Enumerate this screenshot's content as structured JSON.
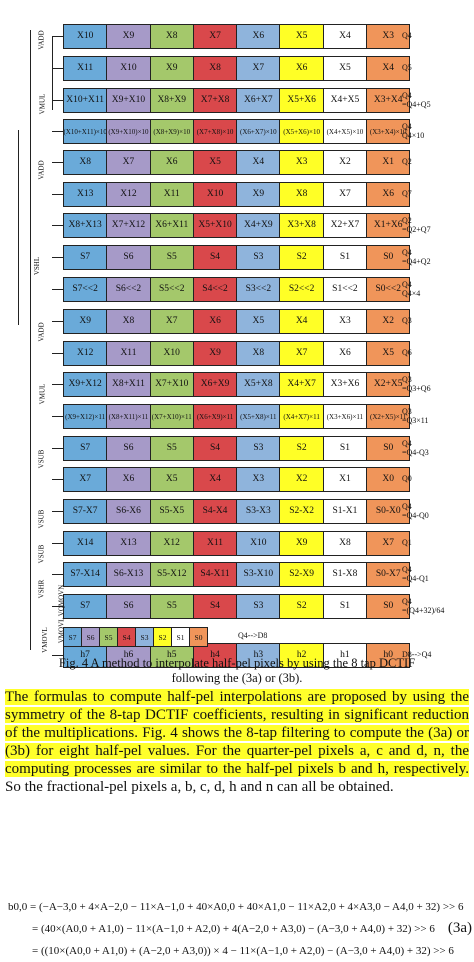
{
  "colors": [
    "#f0955a",
    "#ffffff",
    "#ffff26",
    "#8fb4dc",
    "#d9484b",
    "#a4c86b",
    "#a69ac8",
    "#6aaad9"
  ],
  "rows": [
    {
      "cells": [
        "X10",
        "X9",
        "X8",
        "X7",
        "X6",
        "X5",
        "X4",
        "X3"
      ],
      "label": "Q4",
      "colors": [
        7,
        6,
        5,
        4,
        3,
        2,
        1,
        0
      ]
    },
    {
      "cells": [
        "X11",
        "X10",
        "X9",
        "X8",
        "X7",
        "X6",
        "X5",
        "X4"
      ],
      "label": "Q5",
      "colors": [
        7,
        6,
        5,
        4,
        3,
        2,
        1,
        0
      ]
    },
    {
      "cells": [
        "X10+X11",
        "X9+X10",
        "X8+X9",
        "X7+X8",
        "X6+X7",
        "X5+X6",
        "X4+X5",
        "X3+X4"
      ],
      "label": "Q4\n=Q4+Q5",
      "colors": [
        7,
        6,
        5,
        4,
        3,
        2,
        1,
        0
      ]
    },
    {
      "cells": [
        "(X10+X11)\n×10",
        "(X9+X10)\n×10",
        "(X8+X9)\n×10",
        "(X7+X8)\n×10",
        "(X6+X7)\n×10",
        "(X5+X6)\n×10",
        "(X4+X5)\n×10",
        "(X3+X4)\n×10"
      ],
      "label": "Q4\nQ4×10",
      "colors": [
        7,
        6,
        5,
        4,
        3,
        2,
        1,
        0
      ],
      "two": true
    },
    {
      "cells": [
        "X8",
        "X7",
        "X6",
        "X5",
        "X4",
        "X3",
        "X2",
        "X1"
      ],
      "label": "Q2",
      "colors": [
        7,
        6,
        5,
        4,
        3,
        2,
        1,
        0
      ]
    },
    {
      "cells": [
        "X13",
        "X12",
        "X11",
        "X10",
        "X9",
        "X8",
        "X7",
        "X6"
      ],
      "label": "Q7",
      "colors": [
        7,
        6,
        5,
        4,
        3,
        2,
        1,
        0
      ]
    },
    {
      "cells": [
        "X8+X13",
        "X7+X12",
        "X6+X11",
        "X5+X10",
        "X4+X9",
        "X3+X8",
        "X2+X7",
        "X1+X6"
      ],
      "label": "Q2\n=Q2+Q7",
      "colors": [
        7,
        6,
        5,
        4,
        3,
        2,
        1,
        0
      ]
    },
    {
      "cells": [
        "S7",
        "S6",
        "S5",
        "S4",
        "S3",
        "S2",
        "S1",
        "S0"
      ],
      "label": "Q4\n=Q4+Q2",
      "colors": [
        7,
        6,
        5,
        4,
        3,
        2,
        1,
        0
      ]
    },
    {
      "cells": [
        "S7<<2",
        "S6<<2",
        "S5<<2",
        "S4<<2",
        "S3<<2",
        "S2<<2",
        "S1<<2",
        "S0<<2"
      ],
      "label": "Q4\nQ4×4",
      "colors": [
        7,
        6,
        5,
        4,
        3,
        2,
        1,
        0
      ]
    },
    {
      "cells": [
        "X9",
        "X8",
        "X7",
        "X6",
        "X5",
        "X4",
        "X3",
        "X2"
      ],
      "label": "Q3",
      "colors": [
        7,
        6,
        5,
        4,
        3,
        2,
        1,
        0
      ]
    },
    {
      "cells": [
        "X12",
        "X11",
        "X10",
        "X9",
        "X8",
        "X7",
        "X6",
        "X5"
      ],
      "label": "Q6",
      "colors": [
        7,
        6,
        5,
        4,
        3,
        2,
        1,
        0
      ]
    },
    {
      "cells": [
        "X9+X12",
        "X8+X11",
        "X7+X10",
        "X6+X9",
        "X5+X8",
        "X4+X7",
        "X3+X6",
        "X2+X5"
      ],
      "label": "Q3\n=Q3+Q6",
      "colors": [
        7,
        6,
        5,
        4,
        3,
        2,
        1,
        0
      ]
    },
    {
      "cells": [
        "(X9+X12)\n×11",
        "(X8+X11)\n×11",
        "(X7+X10)\n×11",
        "(X6+X9)\n×11",
        "(X5+X8)\n×11",
        "(X4+X7)\n×11",
        "(X3+X6)\n×11",
        "(X2+X5)\n×11"
      ],
      "label": "Q3\n=Q3×11",
      "colors": [
        7,
        6,
        5,
        4,
        3,
        2,
        1,
        0
      ],
      "two": true
    },
    {
      "cells": [
        "S7",
        "S6",
        "S5",
        "S4",
        "S3",
        "S2",
        "S1",
        "S0"
      ],
      "label": "Q4\n=Q4-Q3",
      "colors": [
        7,
        6,
        5,
        4,
        3,
        2,
        1,
        0
      ]
    },
    {
      "cells": [
        "X7",
        "X6",
        "X5",
        "X4",
        "X3",
        "X2",
        "X1",
        "X0"
      ],
      "label": "Q0",
      "colors": [
        7,
        6,
        5,
        4,
        3,
        2,
        1,
        0
      ]
    },
    {
      "cells": [
        "S7-X7",
        "S6-X6",
        "S5-X5",
        "S4-X4",
        "S3-X3",
        "S2-X2",
        "S1-X1",
        "S0-X0"
      ],
      "label": "Q4\n=Q4-Q0",
      "colors": [
        7,
        6,
        5,
        4,
        3,
        2,
        1,
        0
      ]
    },
    {
      "cells": [
        "X14",
        "X13",
        "X12",
        "X11",
        "X10",
        "X9",
        "X8",
        "X7"
      ],
      "label": "Q1",
      "colors": [
        7,
        6,
        5,
        4,
        3,
        2,
        1,
        0
      ]
    },
    {
      "cells": [
        "S7-X14",
        "S6-X13",
        "S5-X12",
        "S4-X11",
        "S3-X10",
        "S2-X9",
        "S1-X8",
        "S0-X7"
      ],
      "label": "Q4\n=Q4-Q1",
      "colors": [
        7,
        6,
        5,
        4,
        3,
        2,
        1,
        0
      ]
    },
    {
      "cells": [
        "S7",
        "S6",
        "S5",
        "S4",
        "S3",
        "S2",
        "S1",
        "S0"
      ],
      "label": "Q4\n=(Q4+32)/64",
      "colors": [
        7,
        6,
        5,
        4,
        3,
        2,
        1,
        0
      ]
    },
    {
      "cells": [
        "h7",
        "h6",
        "h5",
        "h4",
        "h3",
        "h2",
        "h1",
        "h0"
      ],
      "label": "D8-->Q4",
      "colors": [
        7,
        6,
        5,
        4,
        3,
        2,
        1,
        0
      ]
    }
  ],
  "small_row": {
    "cells": [
      "S7",
      "S6",
      "S5",
      "S4",
      "S3",
      "S2",
      "S1",
      "S0"
    ],
    "label": "Q4-->D8",
    "colors": [
      7,
      6,
      5,
      4,
      3,
      2,
      1,
      0
    ]
  },
  "vlabels": [
    "VADD",
    "VMUL",
    "VADD",
    "VSHL",
    "VADD",
    "VMUL",
    "VSUB",
    "VSUB",
    "VSUB",
    "VSHR",
    "VMOVL VQMOVN",
    "VMOVL"
  ],
  "caption_1": "Fig. 4 A method to interpolate half-pel pixels by using the 8 tap DCTIF",
  "caption_2": "following the (3a) or (3b).",
  "body_hl": "The formulas to compute half-pel interpolations are proposed by using the symmetry of the 8-tap DCTIF coefficients, resulting in significant reduction of the multiplications. Fig. 4 shows the 8-tap filtering to compute the (3a) or (3b) for eight half-pel values. For the quarter-pel pixels a, c and d, n, the computing processes are similar to the half-pel pixels b and h, respectively.",
  "body_rest": " So the fractional-pel pixels a, b, c, d, h and n can all be obtained.",
  "formula_1": "b0,0 = (−A−3,0 + 4×A−2,0 − 11×A−1,0 + 40×A0,0 + 40×A1,0 − 11×A2,0 + 4×A3,0 − A4,0 + 32) >> 6",
  "formula_2": "= (40×(A0,0 + A1,0) − 11×(A−1,0 + A2,0) + 4(A−2,0 + A3,0) − (A−3,0 + A4,0) + 32) >> 6",
  "formula_3": "= ((10×(A0,0 + A1,0) + (A−2,0 + A3,0)) × 4 − 11×(A−1,0 + A2,0) − (A−3,0 + A4,0) + 32) >> 6",
  "eq_number": "(3a)"
}
